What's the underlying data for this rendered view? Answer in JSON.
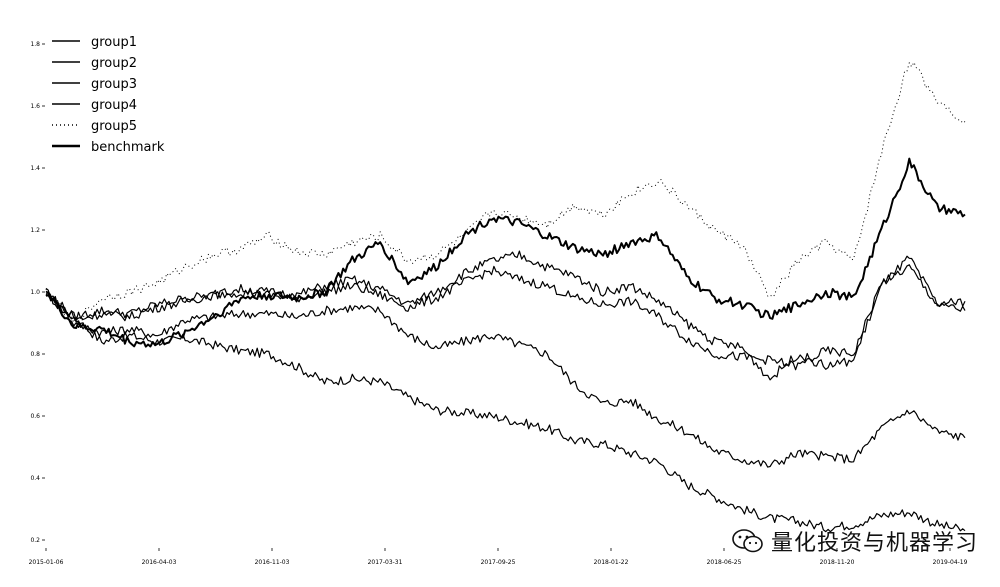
{
  "chart_data": {
    "type": "line",
    "title": "",
    "xlabel": "",
    "ylabel": "",
    "x_ticks": [
      "2015-01-06",
      "2016-04-03",
      "2016-11-03",
      "2017-03-31",
      "2017-09-25",
      "2018-01-22",
      "2018-06-25",
      "2018-11-20",
      "2019-04-19"
    ],
    "y_ticks": [
      "0.2",
      "0.4",
      "0.6",
      "0.8",
      "1.0",
      "1.2",
      "1.4",
      "1.6",
      "1.8"
    ],
    "ylim": [
      0.2,
      1.8
    ],
    "grid": false,
    "legend_position": "top-left",
    "series": [
      {
        "name": "group1",
        "style": "solid",
        "values": [
          1.0,
          0.92,
          0.84,
          0.86,
          0.84,
          0.85,
          0.83,
          0.81,
          0.8,
          0.76,
          0.71,
          0.72,
          0.71,
          0.66,
          0.62,
          0.61,
          0.6,
          0.58,
          0.56,
          0.52,
          0.51,
          0.48,
          0.45,
          0.38,
          0.34,
          0.3,
          0.27,
          0.26,
          0.24,
          0.25,
          0.28,
          0.29,
          0.25,
          0.23
        ]
      },
      {
        "name": "group2",
        "style": "solid",
        "values": [
          1.0,
          0.9,
          0.87,
          0.88,
          0.86,
          0.91,
          0.92,
          0.93,
          0.93,
          0.92,
          0.94,
          0.95,
          0.94,
          0.86,
          0.82,
          0.84,
          0.86,
          0.83,
          0.8,
          0.7,
          0.64,
          0.65,
          0.59,
          0.55,
          0.49,
          0.46,
          0.44,
          0.48,
          0.47,
          0.46,
          0.56,
          0.62,
          0.55,
          0.53
        ]
      },
      {
        "name": "group3",
        "style": "solid",
        "values": [
          1.0,
          0.92,
          0.94,
          0.93,
          0.96,
          0.98,
          0.99,
          1.0,
          0.99,
          0.98,
          1.0,
          1.02,
          0.99,
          0.95,
          0.98,
          1.03,
          1.07,
          1.04,
          1.02,
          0.98,
          0.96,
          0.97,
          0.92,
          0.85,
          0.8,
          0.79,
          0.78,
          0.76,
          0.81,
          0.8,
          1.03,
          1.08,
          0.96,
          0.94
        ]
      },
      {
        "name": "group4",
        "style": "solid",
        "values": [
          1.0,
          0.91,
          0.93,
          0.92,
          0.95,
          0.97,
          0.99,
          1.01,
          1.0,
          0.99,
          1.02,
          1.04,
          1.01,
          0.96,
          1.0,
          1.06,
          1.1,
          1.12,
          1.08,
          1.05,
          1.0,
          1.02,
          0.97,
          0.9,
          0.84,
          0.82,
          0.72,
          0.8,
          0.76,
          0.78,
          1.02,
          1.11,
          0.96,
          0.97
        ]
      },
      {
        "name": "group5",
        "style": "dotted",
        "values": [
          1.0,
          0.9,
          0.98,
          1.0,
          1.03,
          1.08,
          1.12,
          1.14,
          1.18,
          1.13,
          1.12,
          1.16,
          1.18,
          1.1,
          1.12,
          1.18,
          1.26,
          1.24,
          1.22,
          1.28,
          1.25,
          1.32,
          1.36,
          1.28,
          1.2,
          1.15,
          0.98,
          1.1,
          1.16,
          1.1,
          1.45,
          1.75,
          1.62,
          1.55
        ]
      },
      {
        "name": "benchmark",
        "style": "solid-bold",
        "values": [
          1.0,
          0.89,
          0.88,
          0.84,
          0.83,
          0.87,
          0.92,
          0.98,
          0.99,
          0.98,
          1.0,
          1.1,
          1.16,
          1.03,
          1.08,
          1.18,
          1.24,
          1.22,
          1.18,
          1.14,
          1.12,
          1.16,
          1.18,
          1.05,
          0.98,
          0.96,
          0.92,
          0.96,
          1.0,
          0.98,
          1.2,
          1.42,
          1.27,
          1.25
        ]
      }
    ]
  },
  "watermark": {
    "text": "量化投资与机器学习"
  }
}
